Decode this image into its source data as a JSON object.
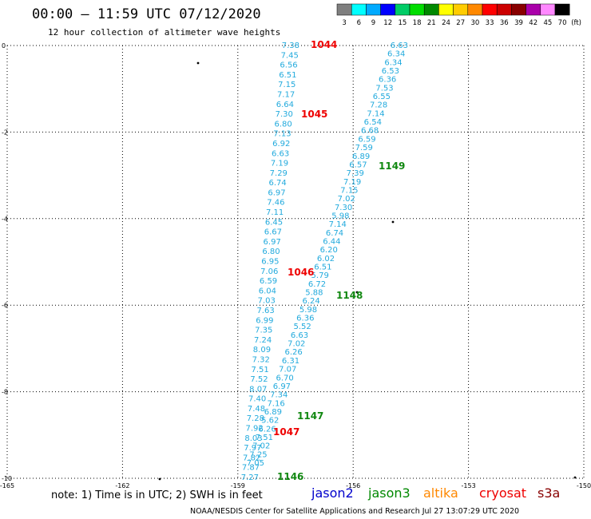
{
  "header": {
    "title": "00:00 – 11:59 UTC 07/12/2020",
    "subtitle": "12 hour collection of altimeter wave heights"
  },
  "color_legend": {
    "unit": "(ft)",
    "bins": [
      {
        "label": "3",
        "color": "#7f7f7f"
      },
      {
        "label": "6",
        "color": "#00ffff"
      },
      {
        "label": "9",
        "color": "#00aaff"
      },
      {
        "label": "12",
        "color": "#0000ff"
      },
      {
        "label": "15",
        "color": "#00cc66"
      },
      {
        "label": "18",
        "color": "#00dd00"
      },
      {
        "label": "21",
        "color": "#008800"
      },
      {
        "label": "24",
        "color": "#ffff00"
      },
      {
        "label": "27",
        "color": "#ffcc00"
      },
      {
        "label": "30",
        "color": "#ff8800"
      },
      {
        "label": "33",
        "color": "#ff0000"
      },
      {
        "label": "36",
        "color": "#cc0000"
      },
      {
        "label": "39",
        "color": "#880000"
      },
      {
        "label": "42",
        "color": "#aa00aa"
      },
      {
        "label": "45",
        "color": "#ff88ff"
      },
      {
        "label": "70",
        "color": "#000000"
      }
    ]
  },
  "map": {
    "x_ticks": [
      "-165",
      "-162",
      "-159",
      "-156",
      "-153",
      "-150"
    ],
    "y_ticks": [
      "0",
      "-2",
      "-4",
      "-6",
      "-8",
      "-10"
    ],
    "lon_range": [
      -165,
      -150
    ],
    "lat_range": [
      -10,
      0
    ],
    "value_color": "#22aadd",
    "red_color": "#ee0000",
    "green_color": "#118811",
    "track_a": [
      "7.38",
      "7.45",
      "6.56",
      "6.51",
      "7.15",
      "7.17",
      "6.64",
      "7.30",
      "6.80",
      "7.13",
      "6.92",
      "6.63",
      "7.19",
      "7.29",
      "6.74",
      "6.97",
      "7.46",
      "7.11",
      "6.45",
      "6.67",
      "6.97",
      "6.80",
      "6.95",
      "7.06",
      "6.59",
      "6.04",
      "7.03",
      "7.63",
      "6.99",
      "7.35",
      "7.24",
      "8.09",
      "7.32",
      "7.51",
      "7.52",
      "8.07",
      "7.40",
      "7.48",
      "7.28",
      "7.92",
      "8.03",
      "7.97",
      "7.82",
      "7.87",
      "7.27"
    ],
    "track_b": [
      "6.63",
      "6.34",
      "6.34",
      "6.53",
      "6.36",
      "7.53",
      "6.55",
      "7.28",
      "7.14",
      "6.54",
      "6.68",
      "6.59",
      "7.59",
      "6.89",
      "6.57",
      "7.39",
      "7.19",
      "7.15",
      "7.02",
      "7.30",
      "5.98",
      "7.14",
      "6.74",
      "6.44",
      "6.20",
      "6.02",
      "6.51",
      "5.79",
      "6.72",
      "5.88",
      "6.24",
      "5.98",
      "6.36",
      "5.52",
      "6.63",
      "7.02",
      "6.26",
      "6.31",
      "7.07",
      "6.70",
      "6.97",
      "7.34",
      "7.16",
      "6.89",
      "5.62",
      "6.26",
      "7.51",
      "7.02",
      "7.25",
      "7.05"
    ],
    "times_red": [
      "1044",
      "1045",
      "1046",
      "1047"
    ],
    "times_green": [
      "1149",
      "1148",
      "1147",
      "1146"
    ]
  },
  "note": "note: 1) Time is in UTC; 2) SWH is in feet",
  "satellites": [
    {
      "name": "jason2",
      "color": "#0000cc"
    },
    {
      "name": "jason3",
      "color": "#008800"
    },
    {
      "name": "altika",
      "color": "#ff8800"
    },
    {
      "name": "cryosat",
      "color": "#ee0000"
    },
    {
      "name": "s3a",
      "color": "#880000"
    }
  ],
  "footer": "NOAA/NESDIS Center for Satellite Applications and Research   Jul 27 13:07:29 UTC 2020"
}
